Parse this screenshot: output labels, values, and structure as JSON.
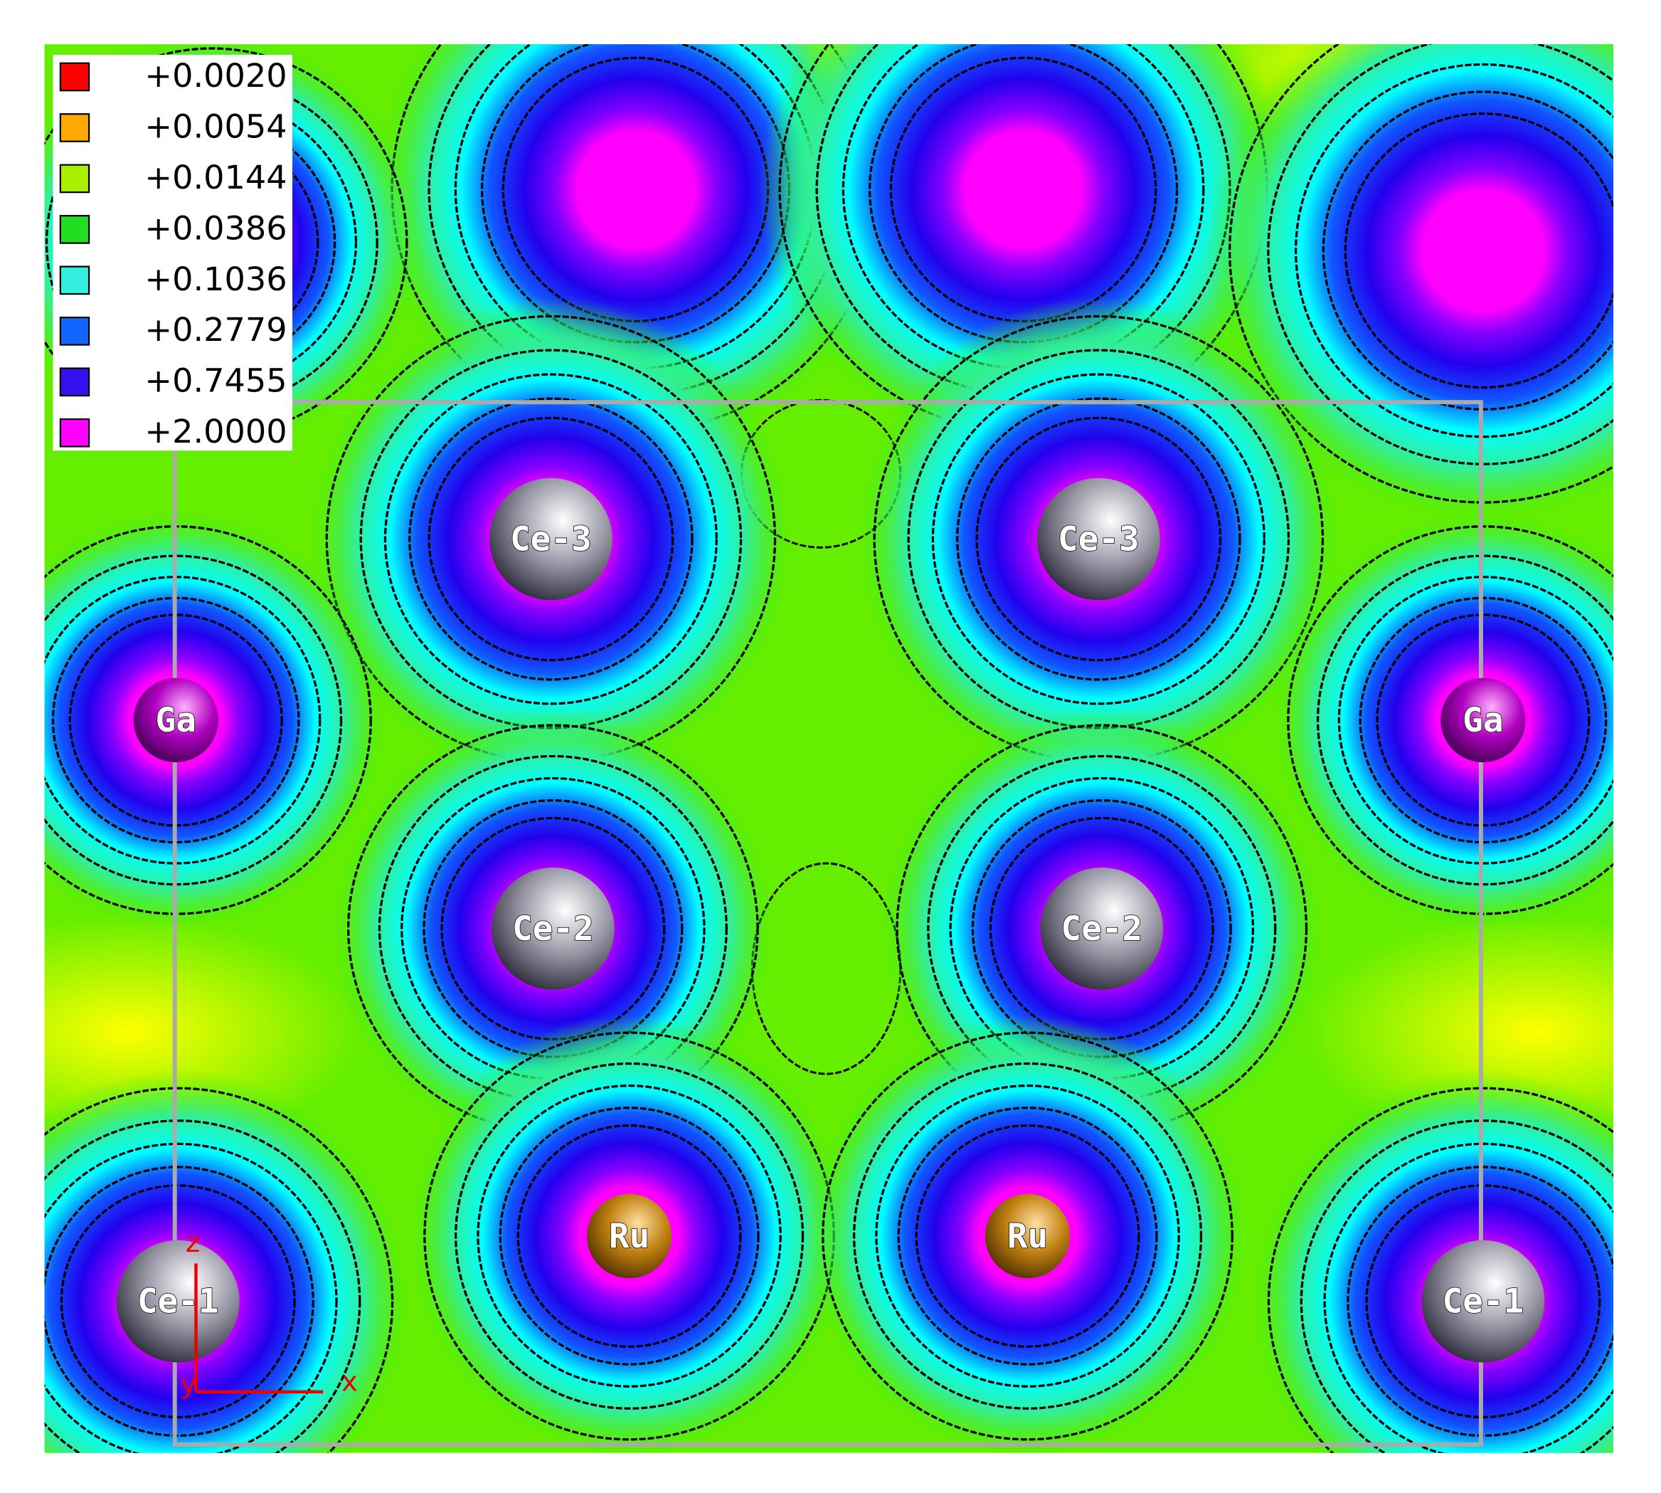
{
  "legend": {
    "entries": [
      {
        "label": "+0.0020",
        "color": "#ff0000"
      },
      {
        "label": "+0.0054",
        "color": "#ffaa00"
      },
      {
        "label": "+0.0144",
        "color": "#aaee00"
      },
      {
        "label": "+0.0386",
        "color": "#22dd22"
      },
      {
        "label": "+0.1036",
        "color": "#33eedd"
      },
      {
        "label": "+0.2779",
        "color": "#1166ff"
      },
      {
        "label": "+0.7455",
        "color": "#3311ee"
      },
      {
        "label": "+2.0000",
        "color": "#ff00ff"
      }
    ]
  },
  "atoms": [
    {
      "label": "Ce-3"
    },
    {
      "label": "Ce-3"
    },
    {
      "label": "Ga"
    },
    {
      "label": "Ga"
    },
    {
      "label": "Ce-2"
    },
    {
      "label": "Ce-2"
    },
    {
      "label": "Ru"
    },
    {
      "label": "Ru"
    },
    {
      "label": "Ce-1"
    },
    {
      "label": "Ce-1"
    }
  ],
  "axes": {
    "z": "z",
    "x": "x",
    "y": "y"
  }
}
